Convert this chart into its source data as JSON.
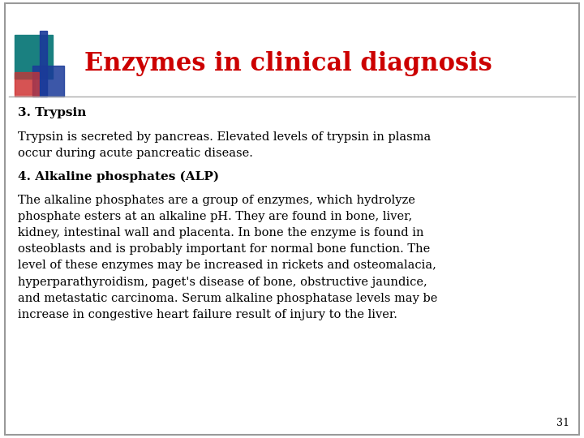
{
  "title": "Enzymes in clinical diagnosis",
  "title_color": "#cc0000",
  "title_fontsize": 22,
  "background_color": "#ffffff",
  "border_color": "#999999",
  "slide_number": "31",
  "heading1": "3. Trypsin",
  "body1": "Trypsin is secreted by pancreas. Elevated levels of trypsin in plasma\noccur during acute pancreatic disease.",
  "heading2": "4. Alkaline phosphates (ALP)",
  "body2": "The alkaline phosphates are a group of enzymes, which hydrolyze\nphosphate esters at an alkaline pH. They are found in bone, liver,\nkidney, intestinal wall and placenta. In bone the enzyme is found in\nosteoblasts and is probably important for normal bone function. The\nlevel of these enzymes may be increased in rickets and osteomalacia,\nhyperparathyroidism, paget's disease of bone, obstructive jaundice,\nand metastatic carcinoma. Serum alkaline phosphatase levels may be\nincrease in congestive heart failure result of injury to the liver.",
  "text_color": "#000000",
  "heading_fontsize": 11,
  "body_fontsize": 10.5,
  "logo_teal": "#1a8080",
  "logo_blue": "#1a3a99",
  "logo_red": "#cc3333",
  "logo_pink": "#ee6666",
  "line_color": "#aaaaaa",
  "slide_num_fontsize": 9
}
